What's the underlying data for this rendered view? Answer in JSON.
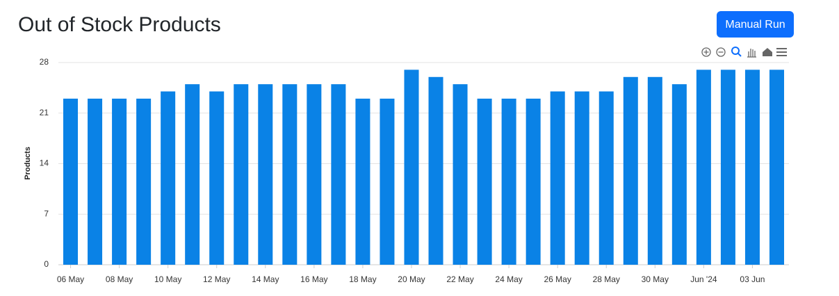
{
  "header": {
    "title": "Out of Stock Products",
    "button": "Manual Run"
  },
  "chart_data": {
    "type": "bar",
    "y_label": "Products",
    "categories": [
      "06 May",
      null,
      "08 May",
      null,
      "10 May",
      null,
      "12 May",
      null,
      "14 May",
      null,
      "16 May",
      null,
      "18 May",
      null,
      "20 May",
      null,
      "22 May",
      null,
      "24 May",
      null,
      "26 May",
      null,
      "28 May",
      null,
      "30 May",
      null,
      "Jun '24",
      null,
      "03 Jun",
      null
    ],
    "values": [
      23,
      23,
      23,
      23,
      24,
      25,
      24,
      25,
      25,
      25,
      25,
      25,
      23,
      23,
      27,
      26,
      25,
      23,
      23,
      23,
      24,
      24,
      24,
      26,
      26,
      25,
      27,
      27,
      27,
      27
    ],
    "color": "#0a82e6",
    "ylim": [
      0,
      28
    ],
    "yticks": [
      0,
      7,
      14,
      21,
      28
    ],
    "grid": true
  }
}
